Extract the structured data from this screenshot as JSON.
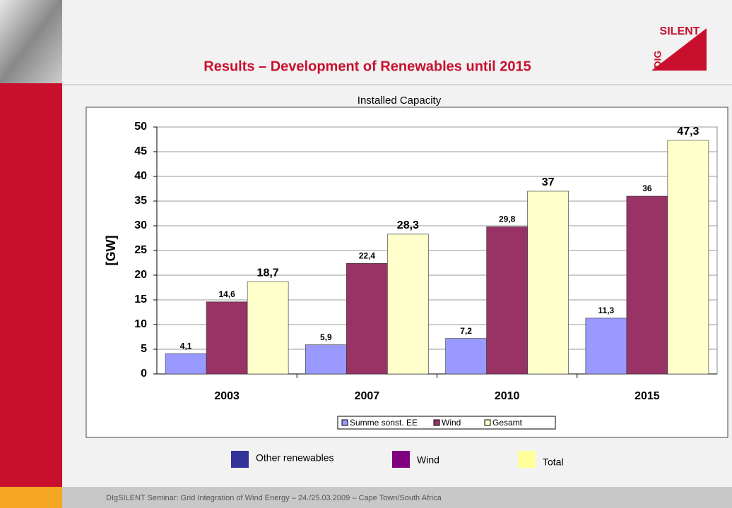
{
  "header": {
    "title": "Results – Development of Renewables until 2015",
    "logo_top": "SILENT",
    "logo_side": "DIG"
  },
  "chart_data": {
    "type": "bar",
    "title": "Installed Capacity",
    "y_label": "[GW]",
    "categories": [
      "2003",
      "2007",
      "2010",
      "2015"
    ],
    "series": [
      {
        "name": "Summe sonst. EE",
        "color": "#9999ff",
        "values": [
          4.1,
          5.9,
          7.2,
          11.3
        ],
        "value_labels": [
          "4,1",
          "5,9",
          "7,2",
          "11,3"
        ]
      },
      {
        "name": "Wind",
        "color": "#993366",
        "values": [
          14.6,
          22.4,
          29.8,
          36
        ],
        "value_labels": [
          "14,6",
          "22,4",
          "29,8",
          "36"
        ]
      },
      {
        "name": "Gesamt",
        "color": "#ffffcc",
        "values": [
          18.7,
          28.3,
          37,
          47.3
        ],
        "value_labels": [
          "18,7",
          "28,3",
          "37",
          "47,3"
        ]
      }
    ],
    "ylim": [
      0,
      50
    ],
    "yticks": [
      0,
      5,
      10,
      15,
      20,
      25,
      30,
      35,
      40,
      45,
      50
    ],
    "grid": true
  },
  "legend_note": [
    {
      "label": "Other renewables",
      "color": "#333399"
    },
    {
      "label": "Wind",
      "color": "#800080"
    },
    {
      "label": "Total",
      "color": "#ffff99"
    }
  ],
  "footer": "DIgSILENT Seminar: Grid Integration of Wind Energy – 24./25.03.2009 – Cape Town/South Africa"
}
